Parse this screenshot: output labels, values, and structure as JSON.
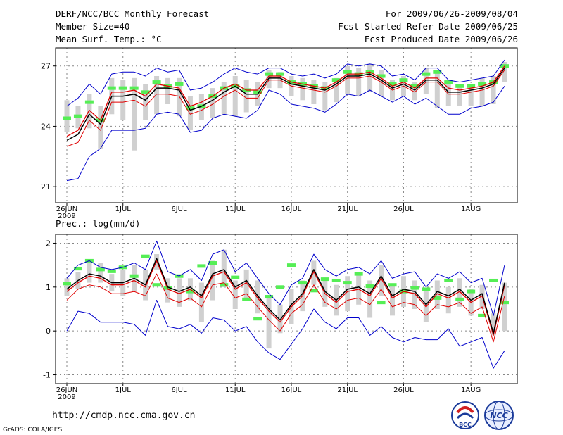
{
  "header": {
    "title": "DERF/NCC/BCC Monthly Forecast",
    "member_size": "Member Size=40",
    "variable": "Mean Surf. Temp.: °C",
    "period": "For 2009/06/26-2009/08/04",
    "fcst_started": "Fcst Started Refer Date 2009/06/25",
    "fcst_produced": "Fcst Produced Date 2009/06/26"
  },
  "footer": {
    "url": "http://cmdp.ncc.cma.gov.cn",
    "credit": "GrADS: COLA/IGES"
  },
  "logos": {
    "bcc": "BCC",
    "ncc": "NCC"
  },
  "colors": {
    "mean": "#000000",
    "median": "#e00000",
    "envelope": "#0000cc",
    "obs_marker": "#55ee55",
    "box": "#d0d0d0",
    "grid": "#888888"
  },
  "chart_data": [
    {
      "type": "line",
      "name": "temperature",
      "title": "Mean Surf. Temp.: °C",
      "x_tick_labels": [
        "26JUN",
        "1JUL",
        "6JUL",
        "11JUL",
        "16JUL",
        "21JUL",
        "26JUL",
        "1AUG"
      ],
      "x_tick_days": [
        1,
        6,
        11,
        16,
        21,
        26,
        31,
        37
      ],
      "year_label": "2009",
      "xlim": [
        1,
        40
      ],
      "ylim": [
        20.2,
        27.9
      ],
      "yticks": [
        21,
        24,
        27
      ],
      "series": [
        {
          "name": "mean",
          "values": [
            23.3,
            23.6,
            24.6,
            24.1,
            25.5,
            25.5,
            25.6,
            25.3,
            25.9,
            25.9,
            25.8,
            24.8,
            25.0,
            25.3,
            25.7,
            26.0,
            25.6,
            25.6,
            26.4,
            26.4,
            26.1,
            26.0,
            25.9,
            25.8,
            26.1,
            26.5,
            26.5,
            26.6,
            26.3,
            25.9,
            26.1,
            25.8,
            26.3,
            26.3,
            25.7,
            25.7,
            25.8,
            25.9,
            26.1,
            26.9
          ]
        },
        {
          "name": "median",
          "values": [
            23.5,
            23.8,
            24.8,
            24.3,
            25.7,
            25.7,
            25.8,
            25.5,
            26.1,
            26.0,
            25.9,
            25.0,
            25.2,
            25.5,
            25.9,
            26.1,
            25.8,
            25.8,
            26.5,
            26.5,
            26.2,
            26.1,
            26.0,
            25.9,
            26.2,
            26.6,
            26.6,
            26.7,
            26.4,
            26.0,
            26.2,
            25.9,
            26.4,
            26.4,
            25.9,
            25.8,
            25.9,
            26.0,
            26.2,
            27.0
          ]
        },
        {
          "name": "ensemble_mean_lower",
          "values": [
            23.0,
            23.2,
            24.3,
            23.8,
            25.2,
            25.2,
            25.3,
            25.0,
            25.6,
            25.6,
            25.5,
            24.6,
            24.8,
            25.1,
            25.5,
            25.8,
            25.4,
            25.4,
            26.3,
            26.3,
            26.0,
            25.9,
            25.8,
            25.7,
            26.0,
            26.4,
            26.4,
            26.5,
            26.2,
            25.8,
            26.0,
            25.7,
            26.2,
            26.2,
            25.6,
            25.6,
            25.7,
            25.8,
            26.0,
            26.8
          ]
        },
        {
          "name": "member_max",
          "values": [
            25.0,
            25.4,
            26.1,
            25.6,
            26.6,
            26.7,
            26.7,
            26.5,
            26.9,
            26.7,
            26.8,
            25.8,
            25.9,
            26.2,
            26.6,
            26.9,
            26.7,
            26.6,
            26.9,
            26.9,
            26.6,
            26.5,
            26.6,
            26.4,
            26.6,
            27.1,
            27.0,
            27.1,
            27.0,
            26.5,
            26.6,
            26.3,
            26.9,
            26.9,
            26.3,
            26.2,
            26.3,
            26.4,
            26.5,
            27.3
          ]
        },
        {
          "name": "member_min",
          "values": [
            21.3,
            21.4,
            22.5,
            22.9,
            23.8,
            23.8,
            23.8,
            23.9,
            24.6,
            24.7,
            24.6,
            23.7,
            23.8,
            24.4,
            24.6,
            24.5,
            24.4,
            24.8,
            25.8,
            25.6,
            25.1,
            25.0,
            24.9,
            24.7,
            25.1,
            25.6,
            25.5,
            25.8,
            25.5,
            25.2,
            25.5,
            25.1,
            25.4,
            25.0,
            24.6,
            24.6,
            24.9,
            25.0,
            25.2,
            26.0
          ]
        },
        {
          "name": "box_upper",
          "values": [
            25.3,
            25.0,
            25.6,
            25.0,
            26.4,
            26.3,
            26.4,
            26.1,
            26.5,
            26.4,
            26.4,
            25.5,
            25.6,
            25.9,
            26.2,
            26.5,
            26.3,
            26.2,
            26.8,
            26.7,
            26.5,
            26.4,
            26.3,
            26.2,
            26.4,
            27.0,
            26.9,
            27.1,
            26.8,
            26.3,
            26.5,
            26.2,
            26.9,
            26.8,
            26.3,
            26.1,
            26.1,
            26.4,
            26.5,
            27.2
          ]
        },
        {
          "name": "box_lower",
          "values": [
            23.7,
            23.9,
            23.9,
            22.9,
            24.6,
            24.3,
            22.8,
            24.3,
            24.6,
            25.1,
            24.5,
            23.8,
            24.3,
            24.4,
            24.6,
            24.5,
            24.7,
            25.0,
            25.9,
            25.9,
            25.5,
            25.3,
            25.1,
            24.8,
            25.2,
            25.6,
            25.5,
            25.7,
            25.5,
            25.3,
            25.5,
            25.3,
            25.6,
            24.9,
            25.0,
            25.0,
            25.0,
            25.0,
            25.1,
            26.2
          ]
        },
        {
          "name": "obs_marker",
          "values": [
            24.4,
            24.5,
            25.2,
            24.3,
            25.9,
            25.9,
            25.9,
            25.7,
            26.2,
            26.0,
            26.1,
            24.9,
            25.0,
            25.5,
            25.9,
            26.0,
            25.8,
            25.7,
            26.6,
            26.6,
            26.2,
            26.1,
            26.0,
            25.9,
            26.3,
            26.7,
            26.6,
            26.7,
            26.5,
            26.1,
            26.3,
            26.0,
            26.6,
            26.7,
            26.2,
            26.0,
            26.0,
            26.1,
            26.2,
            27.0
          ]
        }
      ]
    },
    {
      "type": "line",
      "name": "precipitation",
      "title": "Prec.: log(mm/d)",
      "x_tick_labels": [
        "26JUN",
        "1JUL",
        "6JUL",
        "11JUL",
        "16JUL",
        "21JUL",
        "26JUL",
        "1AUG"
      ],
      "x_tick_days": [
        1,
        6,
        11,
        16,
        21,
        26,
        31,
        37
      ],
      "year_label": "2009",
      "xlim": [
        1,
        40
      ],
      "ylim": [
        -1.2,
        2.2
      ],
      "yticks": [
        -1,
        0,
        1,
        2
      ],
      "series": [
        {
          "name": "mean",
          "values": [
            0.95,
            1.15,
            1.3,
            1.25,
            1.1,
            1.1,
            1.2,
            1.05,
            1.65,
            1.0,
            0.9,
            1.0,
            0.8,
            1.3,
            1.4,
            1.0,
            1.15,
            0.8,
            0.5,
            0.25,
            0.6,
            0.85,
            1.4,
            0.9,
            0.7,
            0.95,
            1.0,
            0.85,
            1.25,
            0.8,
            0.95,
            0.9,
            0.6,
            0.9,
            0.8,
            0.95,
            0.7,
            0.85,
            -0.05,
            1.1
          ]
        },
        {
          "name": "median",
          "values": [
            0.9,
            1.1,
            1.25,
            1.2,
            1.05,
            1.05,
            1.15,
            1.0,
            1.6,
            0.95,
            0.85,
            0.95,
            0.75,
            1.25,
            1.35,
            0.95,
            1.1,
            0.75,
            0.45,
            0.2,
            0.55,
            0.8,
            1.35,
            0.85,
            0.65,
            0.9,
            0.95,
            0.8,
            1.2,
            0.75,
            0.9,
            0.85,
            0.55,
            0.85,
            0.75,
            0.9,
            0.65,
            0.8,
            -0.1,
            1.05
          ]
        },
        {
          "name": "member_max",
          "values": [
            1.2,
            1.5,
            1.6,
            1.45,
            1.4,
            1.45,
            1.55,
            1.4,
            2.05,
            1.35,
            1.25,
            1.4,
            1.15,
            1.75,
            1.85,
            1.35,
            1.55,
            1.2,
            0.85,
            0.6,
            1.05,
            1.2,
            1.75,
            1.4,
            1.25,
            1.4,
            1.45,
            1.3,
            1.6,
            1.2,
            1.3,
            1.35,
            1.0,
            1.3,
            1.2,
            1.35,
            1.1,
            1.2,
            0.35,
            1.5
          ]
        },
        {
          "name": "upper_pct",
          "values": [
            0.7,
            0.95,
            1.05,
            1.0,
            0.85,
            0.85,
            0.9,
            0.8,
            1.3,
            0.75,
            0.65,
            0.75,
            0.55,
            1.05,
            1.1,
            0.75,
            0.85,
            0.55,
            0.25,
            0.0,
            0.4,
            0.6,
            1.05,
            0.65,
            0.5,
            0.7,
            0.75,
            0.6,
            0.95,
            0.55,
            0.65,
            0.6,
            0.35,
            0.6,
            0.55,
            0.65,
            0.4,
            0.55,
            -0.25,
            0.8
          ]
        },
        {
          "name": "member_min",
          "values": [
            0.0,
            0.45,
            0.4,
            0.2,
            0.2,
            0.2,
            0.15,
            -0.1,
            0.7,
            0.1,
            0.05,
            0.15,
            -0.05,
            0.3,
            0.25,
            0.0,
            0.1,
            -0.25,
            -0.5,
            -0.65,
            -0.3,
            0.05,
            0.5,
            0.2,
            0.05,
            0.3,
            0.3,
            -0.1,
            0.1,
            -0.15,
            -0.25,
            -0.15,
            -0.2,
            -0.2,
            0.05,
            -0.35,
            -0.25,
            -0.15,
            -0.85,
            -0.45
          ]
        },
        {
          "name": "box_upper",
          "values": [
            1.2,
            1.35,
            1.55,
            1.55,
            1.3,
            1.4,
            1.5,
            1.4,
            1.75,
            1.2,
            1.2,
            1.2,
            1.1,
            1.6,
            1.85,
            1.15,
            1.4,
            1.15,
            0.75,
            0.6,
            0.95,
            1.15,
            1.6,
            1.2,
            1.05,
            1.25,
            1.35,
            1.15,
            1.5,
            1.05,
            1.25,
            1.15,
            0.9,
            1.15,
            1.0,
            1.2,
            0.95,
            1.05,
            0.4,
            1.1
          ]
        },
        {
          "name": "box_lower",
          "values": [
            0.8,
            0.95,
            1.1,
            1.1,
            0.9,
            0.8,
            0.9,
            0.7,
            1.4,
            0.65,
            0.55,
            0.7,
            0.2,
            0.7,
            1.0,
            0.5,
            0.7,
            0.4,
            -0.4,
            -0.05,
            0.15,
            0.45,
            1.05,
            0.55,
            0.35,
            0.45,
            0.6,
            0.3,
            0.8,
            0.35,
            0.55,
            0.5,
            0.2,
            0.5,
            0.4,
            0.55,
            0.35,
            0.5,
            -0.1,
            0.0
          ]
        },
        {
          "name": "obs_marker",
          "values": [
            1.08,
            1.42,
            1.6,
            1.4,
            1.36,
            1.45,
            1.25,
            1.7,
            1.05,
            0.98,
            1.25,
            0.9,
            1.48,
            1.55,
            1.05,
            1.22,
            0.72,
            0.28,
            0.78,
            1.0,
            1.5,
            1.1,
            0.92,
            1.18,
            1.15,
            1.1,
            1.3,
            1.02,
            0.65,
            1.05,
            0.9,
            0.98,
            0.95,
            0.75,
            1.15,
            0.72,
            0.9,
            0.35,
            1.15,
            0.65
          ]
        }
      ]
    }
  ]
}
